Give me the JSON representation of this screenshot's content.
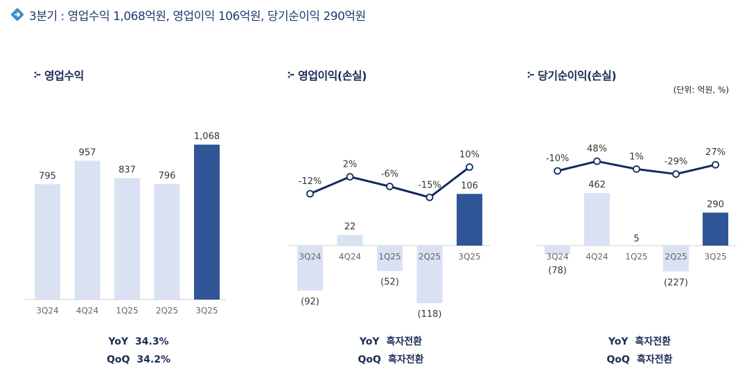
{
  "header": {
    "text": "3분기 : 영업수익 1,068억원, 영업이익 106억원, 당기순이익 290억원"
  },
  "unit_note": "(단위: 억원, %)",
  "colors": {
    "light_bar": "#d9e1f3",
    "dark_bar": "#2f5597",
    "line": "#0f2a5c",
    "header_icon": "#3f8ec9"
  },
  "stats": [
    {
      "yoy_label": "YoY",
      "yoy_value": "34.3%",
      "qoq_label": "QoQ",
      "qoq_value": "34.2%"
    },
    {
      "yoy_label": "YoY",
      "yoy_value": "흑자전환",
      "qoq_label": "QoQ",
      "qoq_value": "흑자전환"
    },
    {
      "yoy_label": "YoY",
      "yoy_value": "흑자전환",
      "qoq_label": "QoQ",
      "qoq_value": "흑자전환"
    }
  ],
  "chart_data": [
    {
      "type": "bar",
      "title": "영업수익",
      "categories": [
        "3Q24",
        "4Q24",
        "1Q25",
        "2Q25",
        "3Q25"
      ],
      "values": [
        795,
        957,
        837,
        796,
        1068
      ],
      "value_labels": [
        "795",
        "957",
        "837",
        "796",
        "1,068"
      ]
    },
    {
      "type": "bar+line",
      "title": "영업이익(손실)",
      "categories": [
        "3Q24",
        "4Q24",
        "1Q25",
        "2Q25",
        "3Q25"
      ],
      "values": [
        -92,
        22,
        -52,
        -118,
        106
      ],
      "value_labels": [
        "(92)",
        "22",
        "(52)",
        "(118)",
        "106"
      ],
      "margin_pct": [
        -12,
        2,
        -6,
        -15,
        10
      ],
      "margin_labels": [
        "-12%",
        "2%",
        "-6%",
        "-15%",
        "10%"
      ]
    },
    {
      "type": "bar+line",
      "title": "당기순이익(손실)",
      "categories": [
        "3Q24",
        "4Q24",
        "1Q25",
        "2Q25",
        "3Q25"
      ],
      "values": [
        -78,
        462,
        5,
        -227,
        290
      ],
      "value_labels": [
        "(78)",
        "462",
        "5",
        "(227)",
        "290"
      ],
      "margin_pct": [
        -10,
        48,
        1,
        -29,
        27
      ],
      "margin_labels": [
        "-10%",
        "48%",
        "1%",
        "-29%",
        "27%"
      ]
    }
  ]
}
